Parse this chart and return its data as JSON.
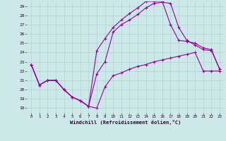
{
  "xlabel": "Windchill (Refroidissement éolien,°C)",
  "bg_color": "#cde8e8",
  "line_color": "#990099",
  "xlim": [
    -0.5,
    23.5
  ],
  "ylim": [
    17.5,
    29.5
  ],
  "xticks": [
    0,
    1,
    2,
    3,
    4,
    5,
    6,
    7,
    8,
    9,
    10,
    11,
    12,
    13,
    14,
    15,
    16,
    17,
    18,
    19,
    20,
    21,
    22,
    23
  ],
  "yticks": [
    18,
    19,
    20,
    21,
    22,
    23,
    24,
    25,
    26,
    27,
    28,
    29
  ],
  "line1_x": [
    0,
    1,
    2,
    3,
    4,
    5,
    6,
    7,
    8,
    9,
    10,
    11,
    12,
    13,
    14,
    15,
    16,
    17,
    18,
    19,
    20,
    21,
    22,
    23
  ],
  "line1_y": [
    22.7,
    20.5,
    21.0,
    21.0,
    20.0,
    19.2,
    18.8,
    18.2,
    18.0,
    20.3,
    21.5,
    21.8,
    22.2,
    22.5,
    22.7,
    23.0,
    23.2,
    23.4,
    23.6,
    23.8,
    24.0,
    22.0,
    22.0,
    22.0
  ],
  "line2_x": [
    0,
    1,
    2,
    3,
    4,
    5,
    6,
    7,
    8,
    9,
    10,
    11,
    12,
    13,
    14,
    15,
    16,
    17,
    18,
    19,
    20,
    21,
    22,
    23
  ],
  "line2_y": [
    22.7,
    20.5,
    21.0,
    21.0,
    20.0,
    19.2,
    18.8,
    18.2,
    21.7,
    23.0,
    26.2,
    27.0,
    27.5,
    28.1,
    28.8,
    29.3,
    29.4,
    29.3,
    26.7,
    25.3,
    24.8,
    24.3,
    24.2,
    22.2
  ],
  "line3_x": [
    0,
    1,
    2,
    3,
    4,
    5,
    6,
    7,
    8,
    9,
    10,
    11,
    12,
    13,
    14,
    15,
    16,
    17,
    18,
    19,
    20,
    21,
    22,
    23
  ],
  "line3_y": [
    22.7,
    20.5,
    21.0,
    21.0,
    20.0,
    19.2,
    18.8,
    18.2,
    24.2,
    25.5,
    26.7,
    27.5,
    28.2,
    28.8,
    29.5,
    29.5,
    29.5,
    27.0,
    25.3,
    25.2,
    25.0,
    24.5,
    24.3,
    22.2
  ]
}
